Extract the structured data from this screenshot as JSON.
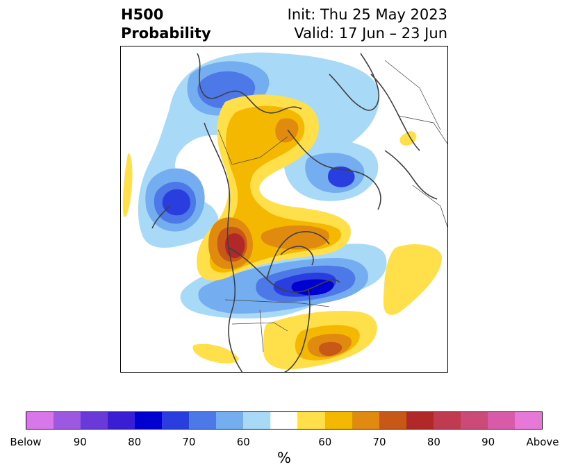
{
  "header": {
    "title_line1": "H500",
    "title_line2": "Probability",
    "init_text": "Init: Thu 25 May 2023",
    "valid_text": "Valid: 17 Jun – 23 Jun"
  },
  "colorbar": {
    "unit": "%",
    "colors": [
      "#d878e8",
      "#9c58e0",
      "#6a3ad8",
      "#3a1ed4",
      "#0000d0",
      "#2a3ee0",
      "#4c78e8",
      "#74aef0",
      "#a8daf8",
      "#ffffff",
      "#ffe04a",
      "#f4b800",
      "#e08a10",
      "#c85818",
      "#b02828",
      "#c03a50",
      "#cc4a78",
      "#d85aa8",
      "#e878d8"
    ],
    "tick_labels": [
      "Below",
      "90",
      "80",
      "70",
      "60",
      "60",
      "70",
      "80",
      "90",
      "Above"
    ]
  },
  "map": {
    "colors": {
      "b60": "#a8daf8",
      "b65": "#74aef0",
      "b70": "#4c78e8",
      "b75": "#2a3ee0",
      "b80": "#0000d0",
      "a60": "#ffe04a",
      "a65": "#f4b800",
      "a70": "#e08a10",
      "a75": "#c85818",
      "a80": "#b02828",
      "coast": "#404040"
    }
  }
}
